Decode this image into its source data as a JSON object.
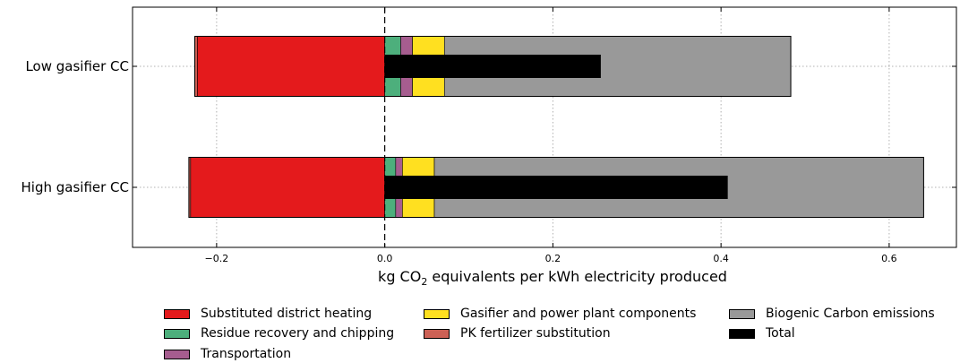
{
  "chart_data": {
    "type": "bar",
    "orientation": "horizontal",
    "stacked": true,
    "xlabel_parts": [
      "kg CO",
      "2",
      " equivalents per kWh electricity produced"
    ],
    "xlim": [
      -0.3,
      0.68
    ],
    "xticks": [
      -0.2,
      0.0,
      0.2,
      0.4,
      0.6
    ],
    "xtick_labels": [
      "−0.2",
      "0.0",
      "0.2",
      "0.4",
      "0.6"
    ],
    "grid": true,
    "legend_placement": "below",
    "categories": [
      "Low gasifier CC",
      "High gasifier CC"
    ],
    "series": [
      {
        "name": "Substituted district heating",
        "color": "#e41a1c",
        "values": [
          -0.223,
          -0.231
        ]
      },
      {
        "name": "Residue recovery and chipping",
        "color": "#4daf7c",
        "values": [
          0.019,
          0.013
        ]
      },
      {
        "name": "Transportation",
        "color": "#a65d8f",
        "values": [
          0.014,
          0.008
        ]
      },
      {
        "name": "PK fertilizer substitution",
        "color": "#cc6155",
        "values": [
          -0.003,
          -0.002
        ]
      },
      {
        "name": "Gasifier and power plant components",
        "color": "#ffe020",
        "values": [
          0.038,
          0.038
        ]
      },
      {
        "name": "Biogenic Carbon emissions",
        "color": "#999999",
        "values": [
          0.412,
          0.582
        ]
      },
      {
        "name": "Total",
        "color": "#000000",
        "values": [
          0.257,
          0.408
        ]
      }
    ]
  },
  "legend": {
    "items": [
      {
        "label": "Substituted district heating",
        "color": "#e41a1c"
      },
      {
        "label": "Residue recovery and chipping",
        "color": "#4daf7c"
      },
      {
        "label": "Transportation",
        "color": "#a65d8f"
      },
      {
        "label": "Gasifier and power plant components",
        "color": "#ffe020"
      },
      {
        "label": "PK fertilizer substitution",
        "color": "#cc6155"
      },
      {
        "label": "Biogenic Carbon emissions",
        "color": "#999999"
      },
      {
        "label": "Total",
        "color": "#000000"
      }
    ]
  }
}
